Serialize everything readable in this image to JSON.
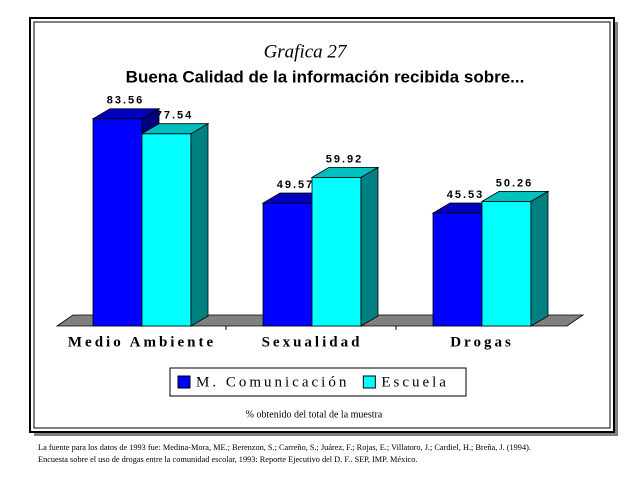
{
  "chart_data": {
    "type": "bar3d",
    "title": "Grafica 27",
    "subtitle": "Buena Calidad de la información recibida sobre...",
    "categories": [
      "Medio Ambiente",
      "Sexualidad",
      "Drogas"
    ],
    "series": [
      {
        "name": "M. Comunicación",
        "color": "#0000ff",
        "values": [
          83.56,
          49.57,
          45.53
        ]
      },
      {
        "name": "Escuela",
        "color": "#00ffff",
        "values": [
          77.54,
          59.92,
          50.26
        ]
      }
    ],
    "ylim": [
      0,
      100
    ],
    "note": "% obtenido del total de la muestra",
    "source": [
      "La fuente para los datos de 1993 fue: Medina-Mora, ME.; Berenzon, S.; Carreño, S.; Juárez, F.; Rojas, E.; Villatoro, J.; Cardiel, H.; Breña, J. (1994).",
      "Encuesta sobre el uso de drogas entre la comunidad escolar, 1993: Reporte Ejecutivo del D. F.. SEP, IMP. México."
    ]
  }
}
